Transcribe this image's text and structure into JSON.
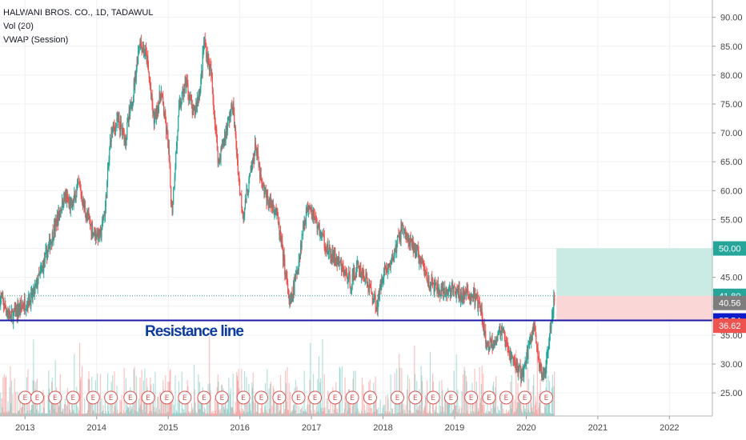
{
  "legend": {
    "symbol": "HALWANI BROS. CO., 1D, TADAWUL",
    "volume": "Vol (20)",
    "vwap": "VWAP (Session)"
  },
  "annotation": {
    "resistance_label": "Resistance line"
  },
  "colors": {
    "up": "#26a69a",
    "down": "#ef5350",
    "resistance": "#1a1aa6",
    "label_text": "#0d3c9e",
    "target_zone": "#bfe7df",
    "stop_zone": "#f9d3d1",
    "tag_50": "#26a69a",
    "tag_4180": "#26a69a",
    "tag_4056": "#7d7d7d",
    "tag_3754": "#0d1bc9",
    "tag_3662": "#ef5350",
    "earnings": "#d9534f"
  },
  "earnings_marker": "E",
  "price_tags": [
    {
      "value": 50.0,
      "label": "50.00",
      "color_key": "tag_50"
    },
    {
      "value": 41.8,
      "label": "41.80",
      "color_key": "tag_4180"
    },
    {
      "value": 40.56,
      "label": "40.56",
      "color_key": "tag_4056"
    },
    {
      "value": 37.54,
      "label": "37.54",
      "color_key": "tag_3754"
    },
    {
      "value": 36.62,
      "label": "36.62",
      "color_key": "tag_3662"
    }
  ],
  "chart_data": {
    "type": "candlestick",
    "ylim": [
      21,
      93
    ],
    "xlim": [
      2012.65,
      2022.6
    ],
    "y_ticks": [
      "25.00",
      "30.00",
      "35.00",
      "40.00",
      "45.00",
      "50.00",
      "55.00",
      "60.00",
      "65.00",
      "70.00",
      "75.00",
      "80.00",
      "85.00",
      "90.00"
    ],
    "x_ticks": [
      "2013",
      "2014",
      "2015",
      "2016",
      "2017",
      "2018",
      "2019",
      "2020",
      "2021",
      "2022"
    ],
    "price_path": [
      [
        2012.65,
        41.5
      ],
      [
        2012.8,
        38
      ],
      [
        2012.95,
        40
      ],
      [
        2013.1,
        41.5
      ],
      [
        2013.25,
        47
      ],
      [
        2013.4,
        53
      ],
      [
        2013.55,
        59
      ],
      [
        2013.65,
        57
      ],
      [
        2013.75,
        61
      ],
      [
        2013.85,
        56
      ],
      [
        2013.95,
        53
      ],
      [
        2014.05,
        52
      ],
      [
        2014.12,
        57
      ],
      [
        2014.2,
        70
      ],
      [
        2014.3,
        72
      ],
      [
        2014.4,
        69
      ],
      [
        2014.5,
        76
      ],
      [
        2014.6,
        86
      ],
      [
        2014.7,
        83
      ],
      [
        2014.8,
        72
      ],
      [
        2014.9,
        77
      ],
      [
        2015.0,
        68
      ],
      [
        2015.05,
        56
      ],
      [
        2015.15,
        74
      ],
      [
        2015.25,
        79
      ],
      [
        2015.35,
        73
      ],
      [
        2015.45,
        78
      ],
      [
        2015.5,
        86
      ],
      [
        2015.6,
        80
      ],
      [
        2015.7,
        65
      ],
      [
        2015.8,
        70
      ],
      [
        2015.9,
        75
      ],
      [
        2016.0,
        60
      ],
      [
        2016.05,
        56
      ],
      [
        2016.15,
        63
      ],
      [
        2016.22,
        68
      ],
      [
        2016.3,
        61
      ],
      [
        2016.4,
        58
      ],
      [
        2016.5,
        57
      ],
      [
        2016.6,
        49
      ],
      [
        2016.7,
        40
      ],
      [
        2016.8,
        46
      ],
      [
        2016.9,
        55
      ],
      [
        2016.97,
        58
      ],
      [
        2017.05,
        55
      ],
      [
        2017.15,
        52
      ],
      [
        2017.25,
        49
      ],
      [
        2017.35,
        48
      ],
      [
        2017.45,
        46
      ],
      [
        2017.55,
        44
      ],
      [
        2017.65,
        47
      ],
      [
        2017.75,
        45
      ],
      [
        2017.85,
        42
      ],
      [
        2017.92,
        40
      ],
      [
        2018.0,
        46
      ],
      [
        2018.1,
        47
      ],
      [
        2018.2,
        51
      ],
      [
        2018.27,
        54
      ],
      [
        2018.35,
        51
      ],
      [
        2018.45,
        50
      ],
      [
        2018.55,
        47
      ],
      [
        2018.65,
        44
      ],
      [
        2018.75,
        43
      ],
      [
        2018.85,
        42
      ],
      [
        2018.95,
        43
      ],
      [
        2019.05,
        42
      ],
      [
        2019.15,
        42
      ],
      [
        2019.25,
        42
      ],
      [
        2019.35,
        40
      ],
      [
        2019.45,
        33
      ],
      [
        2019.55,
        34
      ],
      [
        2019.65,
        36
      ],
      [
        2019.75,
        32
      ],
      [
        2019.85,
        30
      ],
      [
        2019.95,
        28
      ],
      [
        2020.05,
        34
      ],
      [
        2020.12,
        37
      ],
      [
        2020.18,
        29
      ],
      [
        2020.25,
        28
      ],
      [
        2020.33,
        36
      ],
      [
        2020.4,
        41.8
      ]
    ],
    "resistance_value": 37.54,
    "target_zone": [
      41.8,
      50.0
    ],
    "stop_zone": [
      37.54,
      41.8
    ],
    "dotted_level": 41.8,
    "earnings_years": [
      2013.0,
      2013.17,
      2013.42,
      2013.67,
      2013.95,
      2014.2,
      2014.47,
      2014.72,
      2014.98,
      2015.23,
      2015.5,
      2015.75,
      2016.05,
      2016.3,
      2016.55,
      2016.82,
      2017.05,
      2017.33,
      2017.57,
      2017.82,
      2018.2,
      2018.45,
      2018.7,
      2018.95,
      2019.23,
      2019.48,
      2019.72,
      2019.98,
      2020.28
    ]
  }
}
